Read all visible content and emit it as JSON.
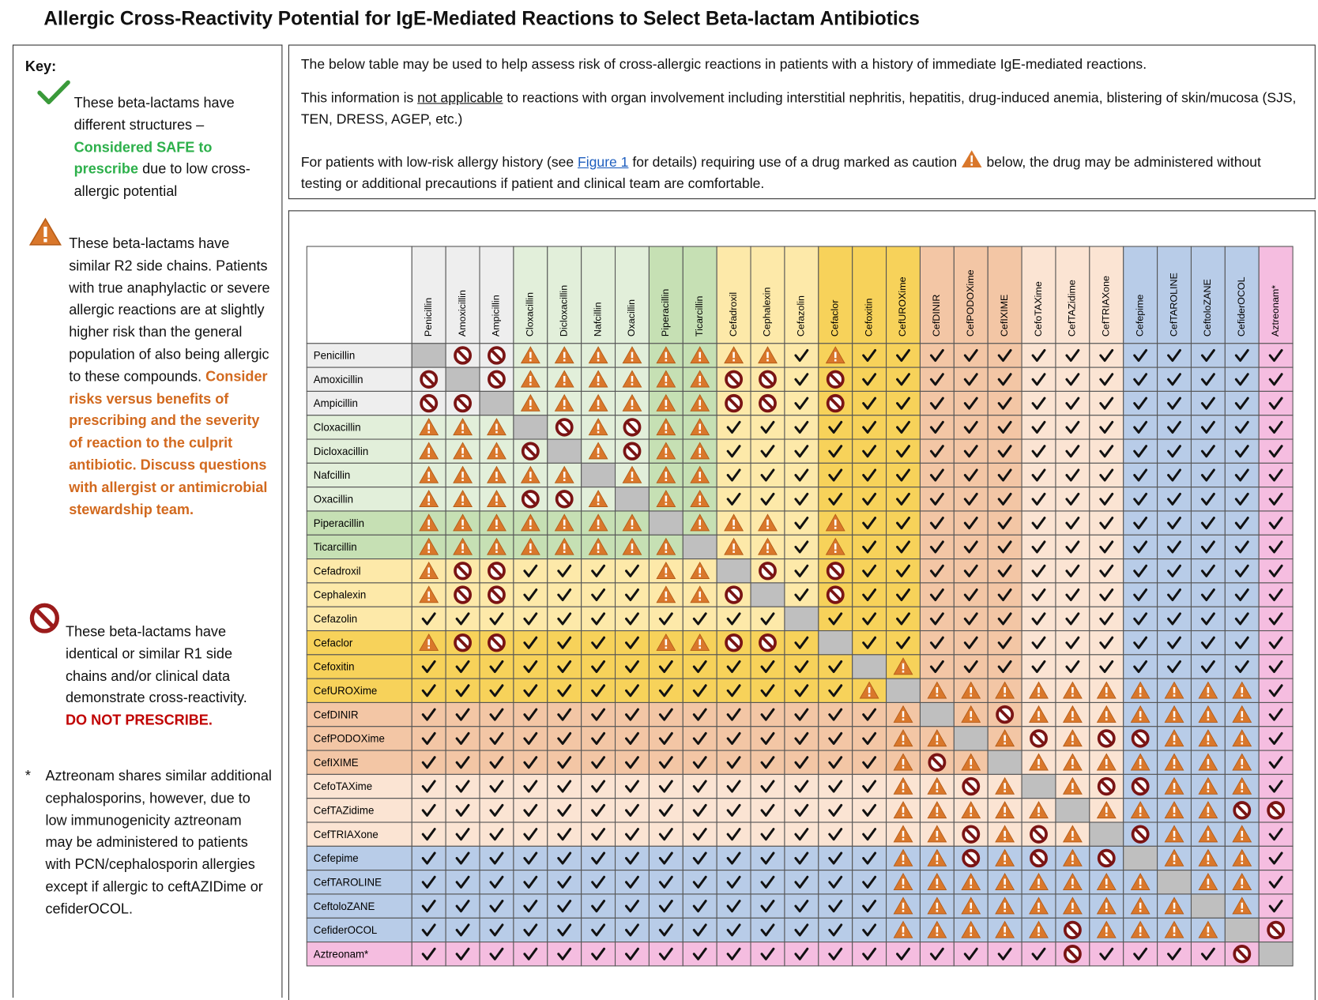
{
  "title": "Allergic Cross-Reactivity Potential for IgE-Mediated Reactions to Select Beta-lactam Antibiotics",
  "key": {
    "heading": "Key:",
    "safe": {
      "text": "These beta-lactams have different structures –",
      "emphasis": "Considered SAFE to prescribe",
      "rest": "due to low cross-allergic potential"
    },
    "caution": {
      "text": "These beta-lactams have similar R2 side chains. Patients with true anaphylactic or severe allergic reactions are at slightly higher risk than the general population of also being allergic to these compounds.",
      "emphasis": "Consider risks versus benefits of prescribing and the severity of reaction to the culprit antibiotic. Discuss questions with allergist or antimicrobial stewardship team."
    },
    "avoid": {
      "text": "These beta-lactams have identical or similar R1 side chains and/or clinical data demonstrate cross-reactivity.",
      "emphasis": "DO NOT PRESCRIBE."
    },
    "note": {
      "marker": "*",
      "text": "Aztreonam shares similar additional cephalosporins, however, due to low immunogenicity aztreonam may be administered to patients with PCN/cephalosporin allergies except if allergic to ceftAZIDime or cefiderOCOL."
    }
  },
  "info": {
    "p1": "The below table may be used to help assess risk of cross-allergic reactions in patients with a history of immediate IgE-mediated reactions.",
    "p2": {
      "before": "This information is",
      "underlined": "not applicable",
      "after": "to reactions with organ involvement including interstitial nephritis, hepatitis, drug-induced anemia, blistering of skin/mucosa (SJS, TEN, DRESS, AGEP, etc.)"
    },
    "p3": {
      "before": "For patients with low-risk allergy history (see",
      "link": "Figure 1",
      "middle": "for details) requiring use of a drug marked as caution",
      "after": "below, the drug may be administered without testing or additional precautions if patient and clinical team are comfortable."
    }
  },
  "table": {
    "columns": [
      "Penicillin",
      "Amoxicillin",
      "Ampicillin",
      "Cloxacillin",
      "Dicloxacillin",
      "Nafcillin",
      "Oxacillin",
      "Piperacillin",
      "Ticarcillin",
      "Cefadroxil",
      "Cephalexin",
      "Cefazolin",
      "Cefaclor",
      "Cefoxitin",
      "CefUROXime",
      "CefDINIR",
      "CefPODOXime",
      "CefIXIME",
      "CefoTAXime",
      "CefTAZidime",
      "CefTRIAXone",
      "Cefepime",
      "CefTAROLINE",
      "CeftoloZANE",
      "CefiderOCOL",
      "Aztreonam*"
    ],
    "colors": [
      "#eeeeee",
      "#eeeeee",
      "#eeeeee",
      "#e2efda",
      "#e2efda",
      "#e2efda",
      "#e2efda",
      "#c6e0b4",
      "#c6e0b4",
      "#fde9a9",
      "#fde9a9",
      "#fde9a9",
      "#f7d25a",
      "#f7d25a",
      "#f7d25a",
      "#f3c6a5",
      "#f3c6a5",
      "#f3c6a5",
      "#fbe4d3",
      "#fbe4d3",
      "#fbe4d3",
      "#b8cce8",
      "#b8cce8",
      "#b8cce8",
      "#b8cce8",
      "#f5bde0"
    ],
    "rows": [
      {
        "label": "Penicillin",
        "cells": "GNNWWWWWWWWCWCCCCCCCCCCCCC"
      },
      {
        "label": "Amoxicillin",
        "cells": "NGNWWWWWWNNCNCCCCCCCCCCCCC"
      },
      {
        "label": "Ampicillin",
        "cells": "NNGWWWWWWNNCNCCCCCCCCCCCCC"
      },
      {
        "label": "Cloxacillin",
        "cells": "WWWGNWNWWCCCCCCCCCCCCCCCCC"
      },
      {
        "label": "Dicloxacillin",
        "cells": "WWWNGWNWWCCCCCCCCCCCCCCCCC"
      },
      {
        "label": "Nafcillin",
        "cells": "WWWWWGWWWCCCCCCCCCCCCCCCCC"
      },
      {
        "label": "Oxacillin",
        "cells": "WWWNNWGWWCCCCCCCCCCCCCCCCC"
      },
      {
        "label": "Piperacillin",
        "cells": "WWWWWWWGWWWCWCCCCCCCCCCCCC"
      },
      {
        "label": "Ticarcillin",
        "cells": "WWWWWWWWGWWCWCCCCCCCCCCCCC"
      },
      {
        "label": "Cefadroxil",
        "cells": "WNNCCCCWWGNCNCCCCCCCCCCCCC"
      },
      {
        "label": "Cephalexin",
        "cells": "WNNCCCCWWNGCNCCCCCCCCCCCCC"
      },
      {
        "label": "Cefazolin",
        "cells": "CCCCCCCCCCCGCCCCCCCCCCCCCC"
      },
      {
        "label": "Cefaclor",
        "cells": "WNNCCCCWWNNCGCCCCCCCCCCCCC"
      },
      {
        "label": "Cefoxitin",
        "cells": "CCCCCCCCCCCCCGWCCCCCCCCCCC"
      },
      {
        "label": "CefUROXime",
        "cells": "CCCCCCCCCCCCCWGWWWWWWWWWWC"
      },
      {
        "label": "CefDINIR",
        "cells": "CCCCCCCCCCCCCCWGWNWWWWWWWC"
      },
      {
        "label": "CefPODOXime",
        "cells": "CCCCCCCCCCCCCCWWGWNWNNWWWC"
      },
      {
        "label": "CefIXIME",
        "cells": "CCCCCCCCCCCCCCWNWGWWWWWWWC"
      },
      {
        "label": "CefoTAXime",
        "cells": "CCCCCCCCCCCCCCWWNWGWNNWWWC"
      },
      {
        "label": "CefTAZidime",
        "cells": "CCCCCCCCCCCCCCWWWWWGWWWWNN"
      },
      {
        "label": "CefTRIAXone",
        "cells": "CCCCCCCCCCCCCCWWNWNWGNWWWC"
      },
      {
        "label": "Cefepime",
        "cells": "CCCCCCCCCCCCCCWWNWNWNGWWWC"
      },
      {
        "label": "CefTAROLINE",
        "cells": "CCCCCCCCCCCCCCWWWWWWWWGWWC"
      },
      {
        "label": "CeftoloZANE",
        "cells": "CCCCCCCCCCCCCCWWWWWWWWWGWC"
      },
      {
        "label": "CefiderOCOL",
        "cells": "CCCCCCCCCCCCCCWWWWWNWWWWGN"
      },
      {
        "label": "Aztreonam*",
        "cells": "CCCCCCCCCCCCCCCCCCCNCCCCNG"
      }
    ]
  }
}
